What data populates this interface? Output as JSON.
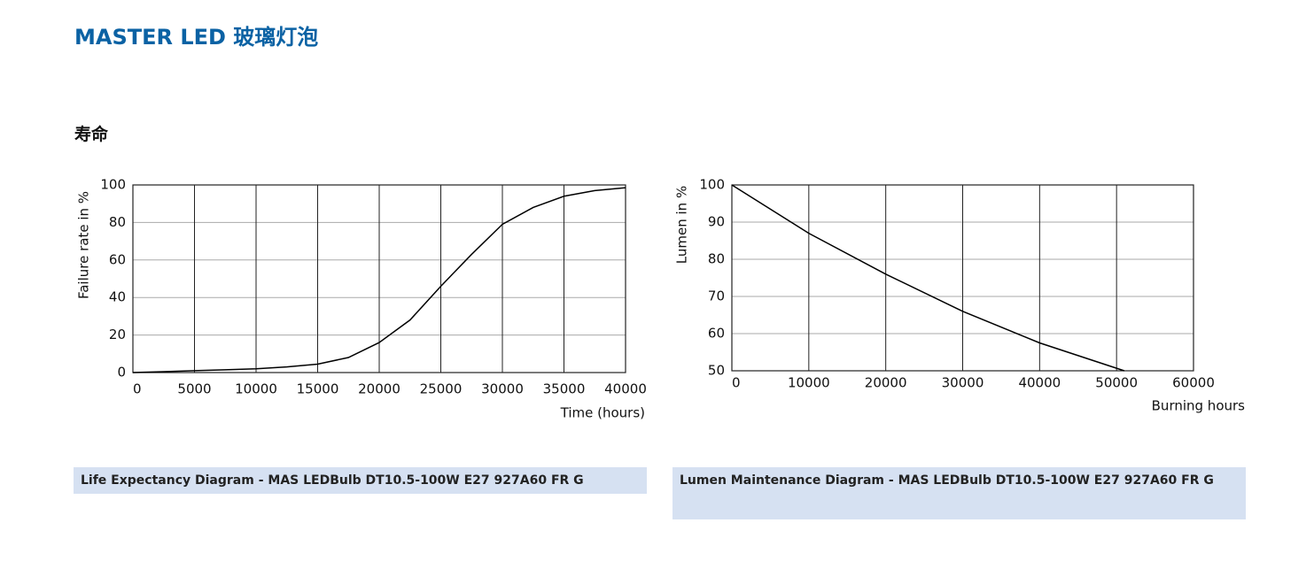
{
  "header": {
    "title": "MASTER LED 玻璃灯泡",
    "section": "寿命"
  },
  "chart_data": [
    {
      "type": "line",
      "caption": "Life Expectancy Diagram - MAS LEDBulb DT10.5-100W E27 927A60 FR G",
      "x_label": "Time (hours)",
      "y_label": "Failure rate in %",
      "x": [
        0,
        2500,
        5000,
        7500,
        10000,
        12500,
        15000,
        17500,
        20000,
        22500,
        25000,
        27500,
        30000,
        32500,
        35000,
        37500,
        40000
      ],
      "values": [
        0,
        0.5,
        1,
        1.5,
        2,
        3,
        4.5,
        8,
        16,
        28,
        46,
        63,
        79,
        88,
        94,
        97,
        98.5
      ],
      "color": "#000000",
      "xlim": [
        0,
        40000
      ],
      "xticks": [
        0,
        5000,
        10000,
        15000,
        20000,
        25000,
        30000,
        35000,
        40000
      ],
      "ylim": [
        0,
        100
      ],
      "yticks": [
        0,
        20,
        40,
        60,
        80,
        100
      ],
      "grid": true
    },
    {
      "type": "line",
      "caption": "Lumen Maintenance Diagram - MAS LEDBulb DT10.5-100W E27 927A60 FR G",
      "x_label": "Burning hours",
      "y_label": "Lumen in %",
      "x": [
        0,
        10000,
        20000,
        30000,
        40000,
        51000
      ],
      "values": [
        100,
        87,
        76,
        66,
        57.5,
        50
      ],
      "color": "#000000",
      "xlim": [
        0,
        60000
      ],
      "xticks": [
        0,
        10000,
        20000,
        30000,
        40000,
        50000,
        60000
      ],
      "ylim": [
        50,
        100
      ],
      "yticks": [
        50,
        60,
        70,
        80,
        90,
        100
      ],
      "grid": true
    }
  ]
}
